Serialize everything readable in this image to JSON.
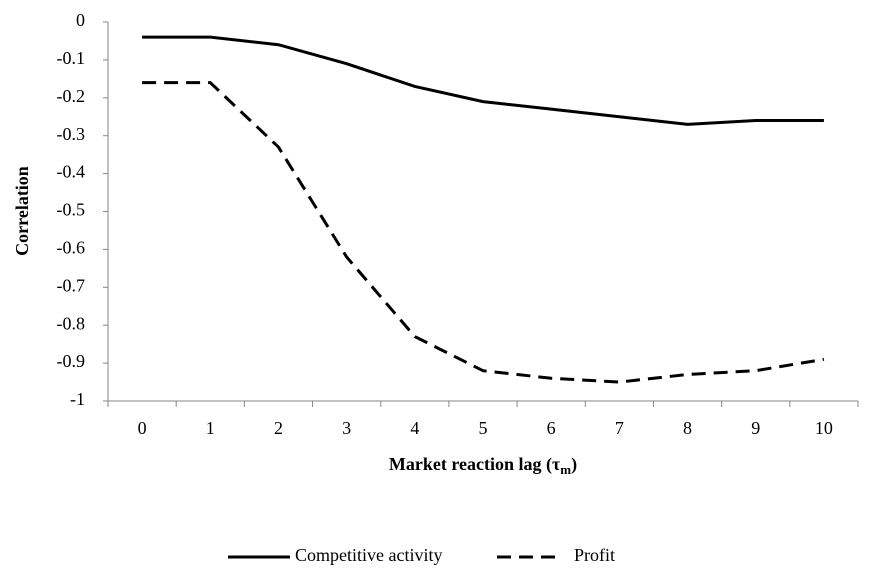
{
  "chart_data": {
    "type": "line",
    "x_label": [
      "Market reaction lag (τ",
      "m",
      ")"
    ],
    "y_label": "Correlation",
    "categories": [
      "0",
      "1",
      "2",
      "3",
      "4",
      "5",
      "6",
      "7",
      "8",
      "9",
      "10"
    ],
    "series": [
      {
        "name": "Competitive activity",
        "color": "#000000",
        "line_style": "solid",
        "values": [
          -0.04,
          -0.04,
          -0.06,
          -0.11,
          -0.17,
          -0.21,
          -0.23,
          -0.25,
          -0.27,
          -0.26,
          -0.26
        ]
      },
      {
        "name": "Profit",
        "color": "#000000",
        "line_style": "dashed",
        "values": [
          -0.16,
          -0.16,
          -0.33,
          -0.62,
          -0.83,
          -0.92,
          -0.94,
          -0.95,
          -0.93,
          -0.92,
          -0.89
        ]
      }
    ],
    "ylim": [
      -1,
      0
    ],
    "yticks": [
      0,
      -0.1,
      -0.2,
      -0.3,
      -0.4,
      -0.5,
      -0.6,
      -0.7,
      -0.8,
      -0.9,
      -1
    ],
    "grid": false,
    "legend": "bottom"
  }
}
